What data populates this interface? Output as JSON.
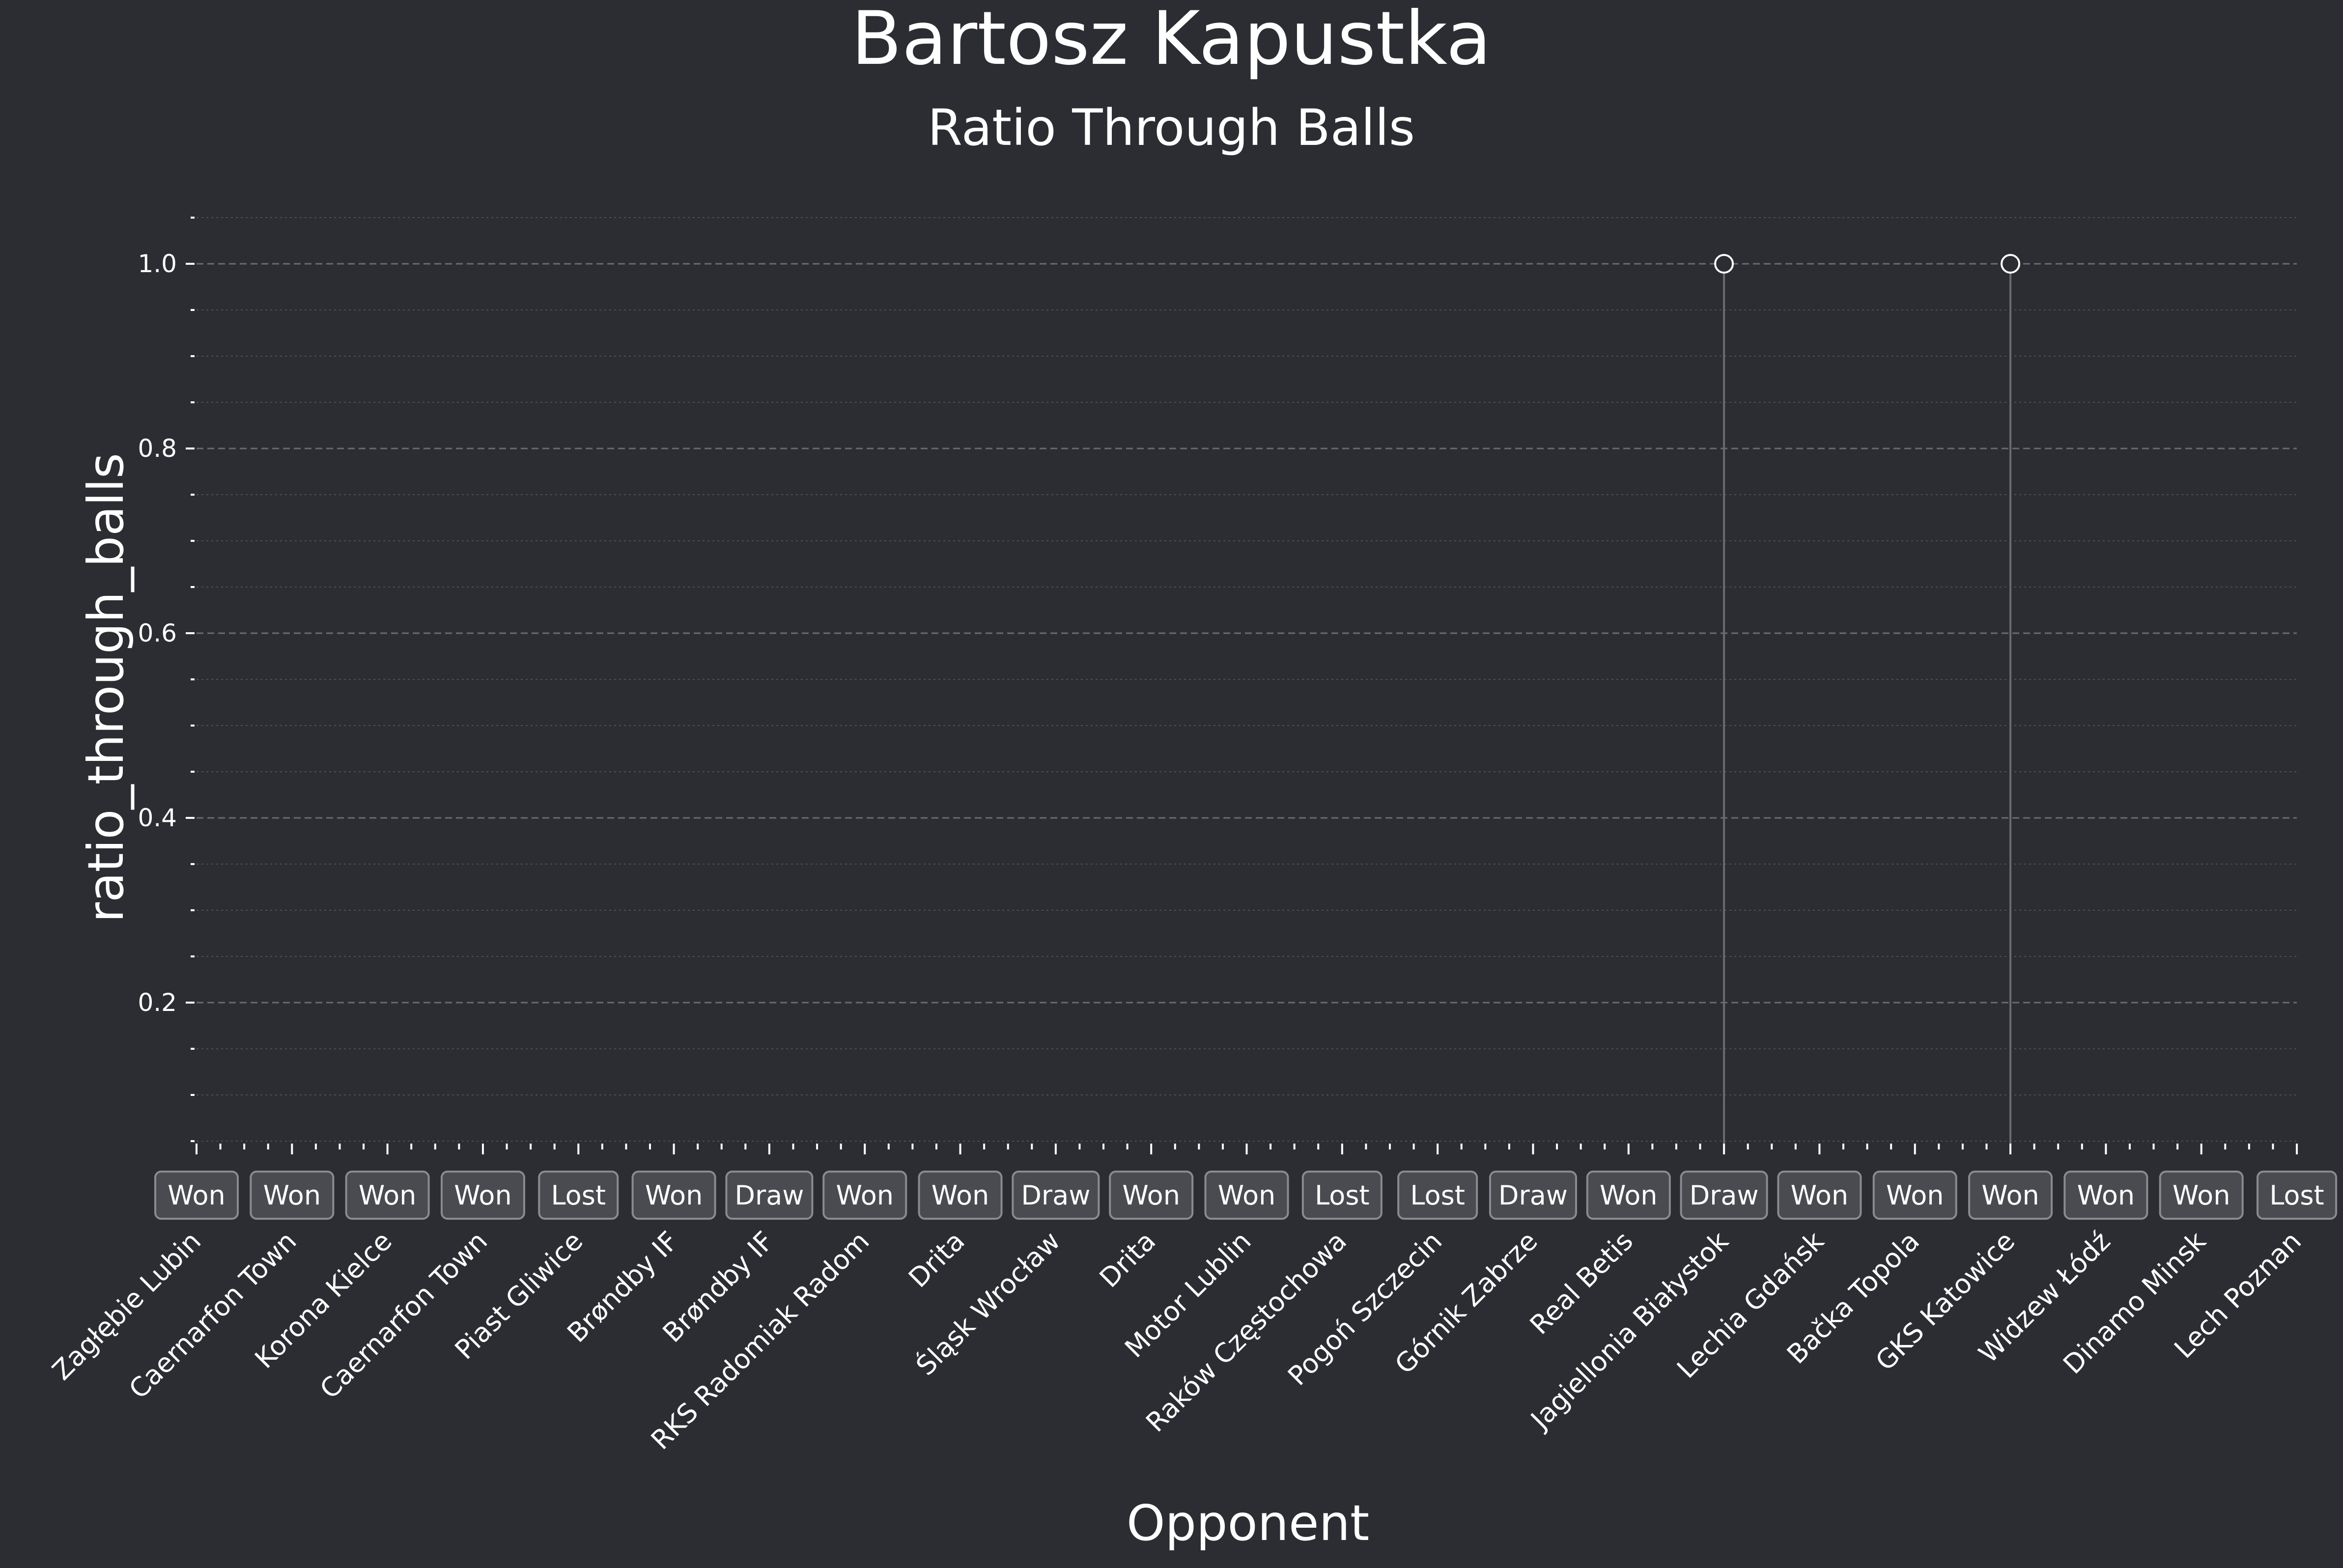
{
  "chart_data": {
    "type": "scatter",
    "title": "Bartosz Kapustka",
    "subtitle": "Ratio Through Balls",
    "xlabel": "Opponent",
    "ylabel": "ratio_through_balls",
    "ylim": [
      0.05,
      1.05
    ],
    "yticks": [
      "0.2",
      "0.4",
      "0.6",
      "0.8",
      "1.0"
    ],
    "grid": true,
    "categories": [
      "Zagłębie Lubin",
      "Caernarfon Town",
      "Korona Kielce",
      "Caernarfon Town",
      "Piast Gliwice",
      "Brøndby IF",
      "Brøndby IF",
      "RKS Radomiak Radom",
      "Drita",
      "Śląsk Wrocław",
      "Drita",
      "Motor Lublin",
      "Raków Częstochowa",
      "Pogoń Szczecin",
      "Górnik Zabrze",
      "Real Betis",
      "Jagiellonia Białystok",
      "Lechia Gdańsk",
      "Bačka Topola",
      "GKS Katowice",
      "Widzew Łódź",
      "Dinamo Minsk",
      "Lech Poznan"
    ],
    "results": [
      "Won",
      "Won",
      "Won",
      "Won",
      "Lost",
      "Won",
      "Draw",
      "Won",
      "Won",
      "Draw",
      "Won",
      "Won",
      "Lost",
      "Lost",
      "Draw",
      "Won",
      "Draw",
      "Won",
      "Won",
      "Won",
      "Won",
      "Won",
      "Lost"
    ],
    "values": [
      null,
      null,
      null,
      null,
      null,
      null,
      null,
      null,
      null,
      null,
      null,
      null,
      null,
      null,
      null,
      null,
      1.0,
      null,
      null,
      1.0,
      null,
      null,
      null
    ]
  }
}
